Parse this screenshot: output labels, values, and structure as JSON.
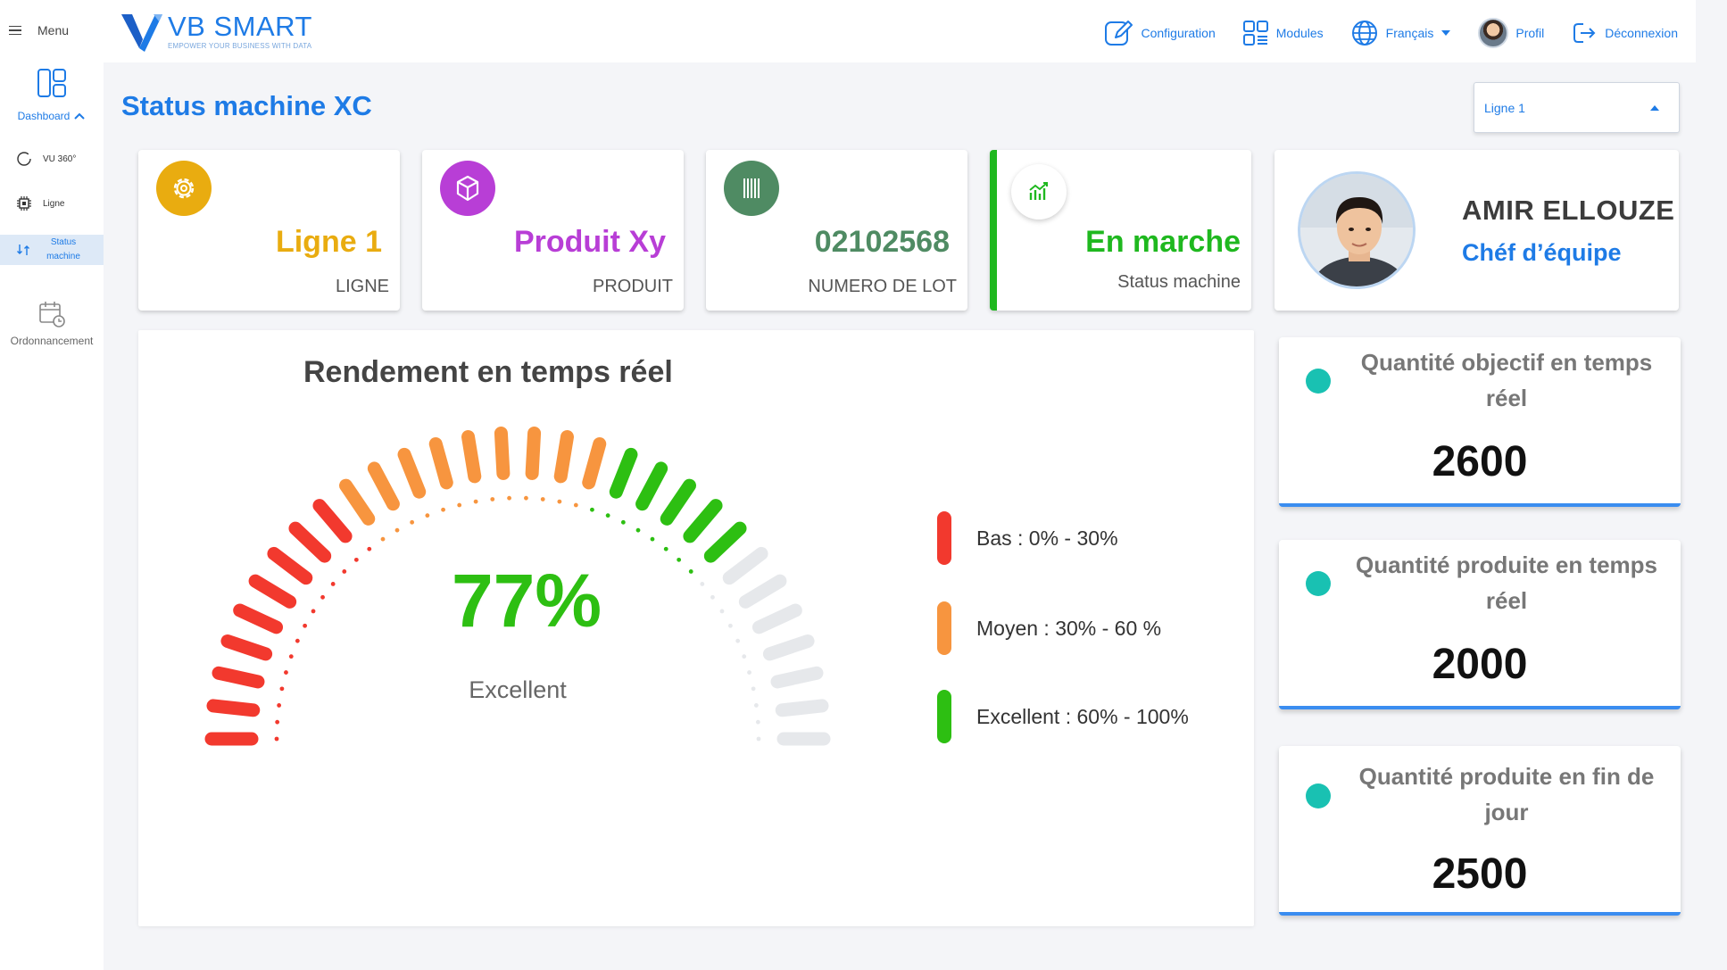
{
  "sidebar": {
    "menu_label": "Menu",
    "dashboard_label": "Dashboard",
    "items": [
      {
        "label": "VU 360°",
        "icon": "circle-icon"
      },
      {
        "label": "Ligne",
        "icon": "chip-icon"
      },
      {
        "label": "Status machine",
        "icon": "sync-icon"
      }
    ],
    "schedule_label": "Ordonnancement"
  },
  "header": {
    "logo_title": "VB SMART",
    "logo_tagline": "EMPOWER YOUR BUSINESS WITH DATA",
    "nav": {
      "configuration": "Configuration",
      "modules": "Modules",
      "language": "Français",
      "profile": "Profil",
      "logout": "Déconnexion"
    }
  },
  "page": {
    "title": "Status machine XC",
    "line_select_value": "Ligne 1"
  },
  "info_cards": [
    {
      "value": "Ligne 1",
      "label": "LIGNE",
      "color": "#e9ac10"
    },
    {
      "value": "Produit Xy",
      "label": "PRODUIT",
      "color": "#b83ed6"
    },
    {
      "value": "02102568",
      "label": "NUMERO DE LOT",
      "color": "#4f8b63"
    },
    {
      "value": "En marche",
      "label": "Status machine",
      "color": "#1fb81f"
    }
  ],
  "profile": {
    "name": "AMIR ELLOUZE",
    "role": "Chéf d’équipe"
  },
  "gauge": {
    "title": "Rendement en temps réel",
    "value_percent": 77,
    "value_text": "77%",
    "status": "Excellent",
    "legend": [
      {
        "label": "Bas  : 0% - 30%",
        "color": "#f2392e"
      },
      {
        "label": "Moyen :  30% - 60 %",
        "color": "#f7953f"
      },
      {
        "label": "Excellent : 60% - 100%",
        "color": "#2dbf12"
      }
    ]
  },
  "kpis": [
    {
      "title": "Quantité objectif  en temps réel",
      "value": "2600"
    },
    {
      "title": "Quantité produite en temps réel",
      "value": "2000"
    },
    {
      "title": "Quantité produite en fin de jour",
      "value": "2500"
    }
  ]
}
